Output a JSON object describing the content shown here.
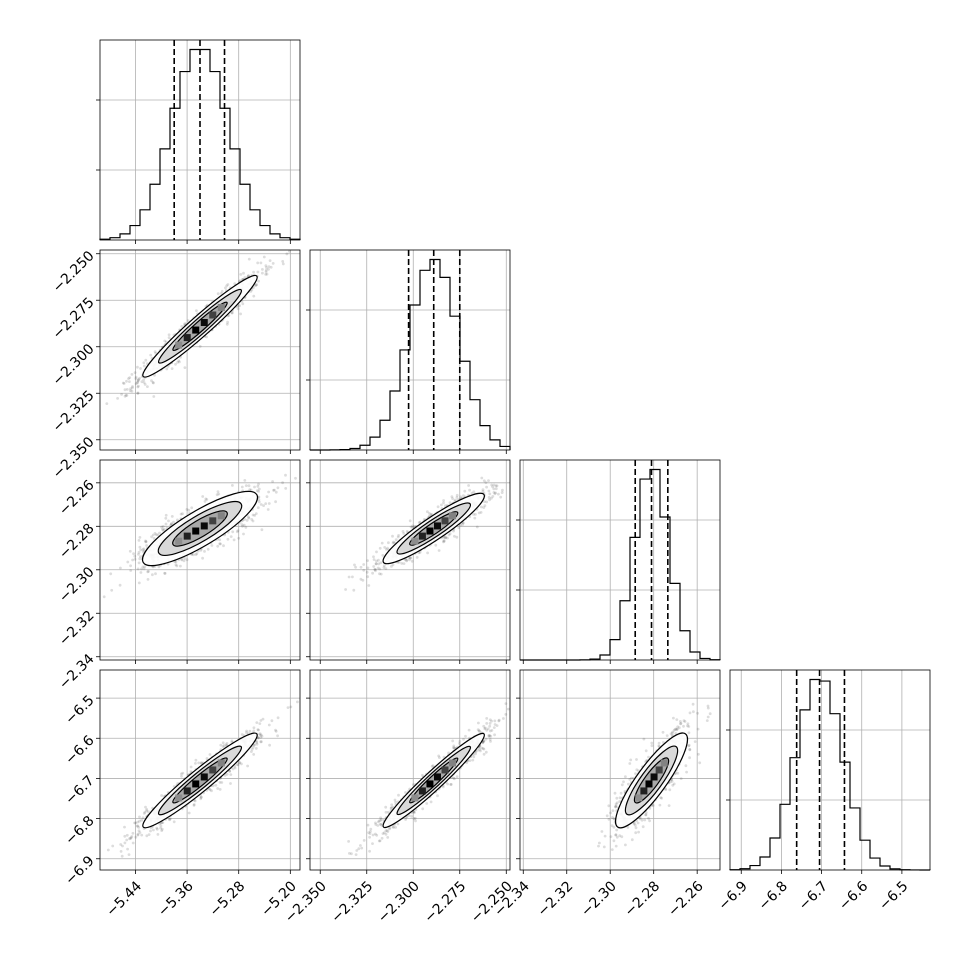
{
  "chart_data": {
    "type": "corner",
    "parameters": [
      {
        "mean": -5.34,
        "std": 0.044,
        "range": [
          -5.495,
          -5.185
        ],
        "ticks": [
          -5.44,
          -5.36,
          -5.28,
          -5.2
        ],
        "tick_labels": [
          "−5.44",
          "−5.36",
          "−5.28",
          "−5.20"
        ],
        "quantiles": [
          -5.38,
          -5.34,
          -5.302
        ]
      },
      {
        "mean": -2.289,
        "std": 0.0135,
        "range": [
          -2.3555,
          -2.248
        ],
        "ticks": [
          -2.35,
          -2.325,
          -2.3,
          -2.275,
          -2.25
        ],
        "tick_labels": [
          "−2.350",
          "−2.325",
          "−2.300",
          "−2.275",
          "−2.250"
        ],
        "quantiles": [
          -2.3025,
          -2.289,
          -2.275
        ]
      },
      {
        "mean": -2.281,
        "std": 0.0078,
        "range": [
          -2.3415,
          -2.2495
        ],
        "ticks": [
          -2.34,
          -2.32,
          -2.3,
          -2.28,
          -2.26
        ],
        "tick_labels": [
          "−2.34",
          "−2.32",
          "−2.30",
          "−2.28",
          "−2.26"
        ],
        "quantiles": [
          -2.2885,
          -2.281,
          -2.2735
        ]
      },
      {
        "mean": -6.705,
        "std": 0.058,
        "range": [
          -6.928,
          -6.43
        ],
        "ticks": [
          -6.9,
          -6.8,
          -6.7,
          -6.6,
          -6.5
        ],
        "tick_labels": [
          "−6.9",
          "−6.8",
          "−6.7",
          "−6.6",
          "−6.5"
        ],
        "quantiles": [
          -6.762,
          -6.705,
          -6.643
        ]
      }
    ],
    "correlations": [
      [
        1,
        0.96,
        0.8,
        0.95
      ],
      [
        0.96,
        1,
        0.91,
        0.96
      ],
      [
        0.8,
        0.91,
        1,
        0.84
      ],
      [
        0.95,
        0.96,
        0.84,
        1
      ]
    ],
    "histogram_bins": 20,
    "grid": true,
    "colors": {
      "line": "#000000",
      "grid": "#b0b0b0",
      "points": "#444444",
      "density_low": "#d9d9d9",
      "density_high": "#000000"
    }
  }
}
